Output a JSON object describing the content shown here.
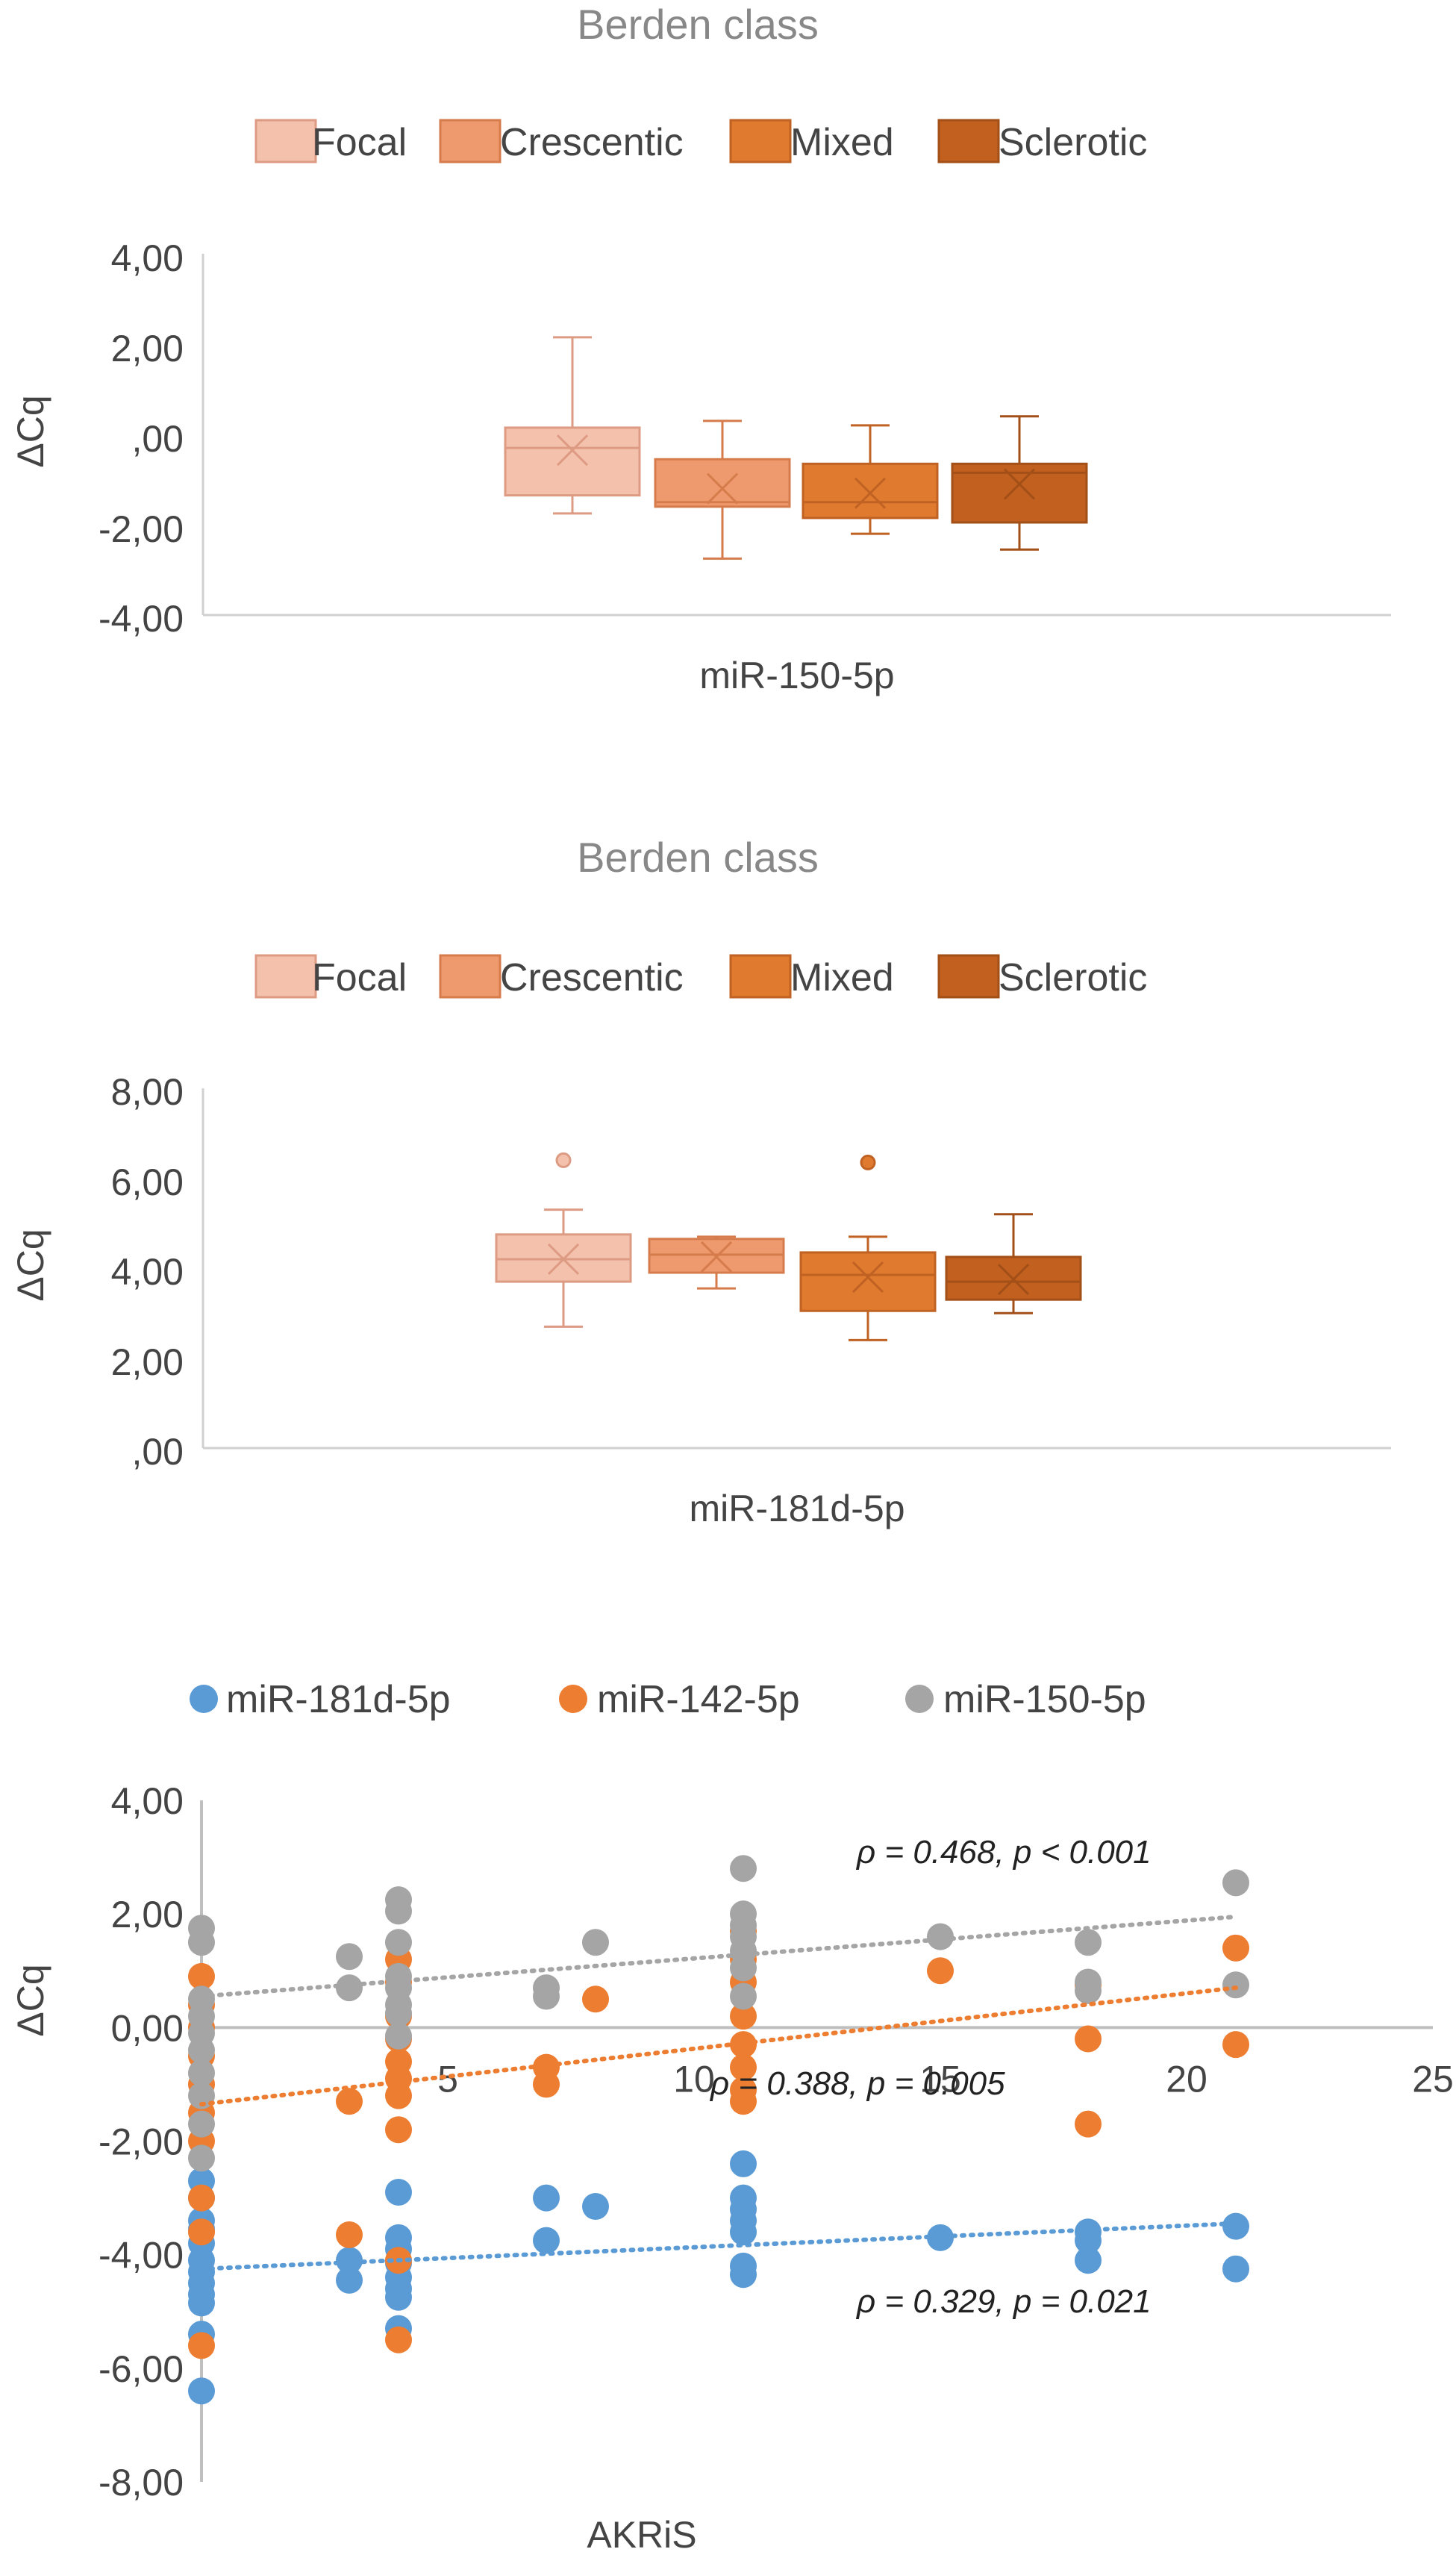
{
  "chart_data": [
    {
      "type": "box",
      "title": "Berden class",
      "xlabel": "miR-150-5p",
      "ylabel": "ΔCq",
      "ylim": [
        -4,
        4
      ],
      "yticks": [
        "4,00",
        "2,00",
        ",00",
        "-2,00",
        "-4,00"
      ],
      "ytick_values": [
        4,
        2,
        0,
        -2,
        -4
      ],
      "legend": [
        "Focal",
        "Crescentic",
        "Mixed",
        "Sclerotic"
      ],
      "colors": {
        "fill": [
          "#f4c1ac",
          "#ef9a6e",
          "#e07a2e",
          "#c2601f"
        ],
        "stroke": [
          "#dc9b82",
          "#d67c4c",
          "#bf6223",
          "#a34f18"
        ]
      },
      "boxes": [
        {
          "name": "Focal",
          "min": -1.75,
          "q1": -1.35,
          "median": -0.3,
          "q3": 0.15,
          "max": 2.15,
          "mean": -0.35,
          "outliers": []
        },
        {
          "name": "Crescentic",
          "min": -2.75,
          "q1": -1.6,
          "median": -1.5,
          "q3": -0.55,
          "max": 0.3,
          "mean": -1.2,
          "outliers": []
        },
        {
          "name": "Mixed",
          "min": -2.2,
          "q1": -1.85,
          "median": -1.5,
          "q3": -0.65,
          "max": 0.2,
          "mean": -1.3,
          "outliers": []
        },
        {
          "name": "Sclerotic",
          "min": -2.55,
          "q1": -1.95,
          "median": -0.85,
          "q3": -0.65,
          "max": 0.4,
          "mean": -1.1,
          "outliers": []
        }
      ]
    },
    {
      "type": "box",
      "title": "Berden class",
      "xlabel": "miR-181d-5p",
      "ylabel": "ΔCq",
      "ylim": [
        0,
        8
      ],
      "yticks": [
        "8,00",
        "6,00",
        "4,00",
        "2,00",
        ",00"
      ],
      "ytick_values": [
        8,
        6,
        4,
        2,
        0
      ],
      "legend": [
        "Focal",
        "Crescentic",
        "Mixed",
        "Sclerotic"
      ],
      "colors": {
        "fill": [
          "#f4c1ac",
          "#ef9a6e",
          "#e07a2e",
          "#c2601f"
        ],
        "stroke": [
          "#dc9b82",
          "#d67c4c",
          "#bf6223",
          "#a34f18"
        ]
      },
      "boxes": [
        {
          "name": "Focal",
          "min": 2.7,
          "q1": 3.7,
          "median": 4.2,
          "q3": 4.75,
          "max": 5.3,
          "mean": 4.2,
          "outliers": [
            6.4
          ]
        },
        {
          "name": "Crescentic",
          "min": 3.55,
          "q1": 3.9,
          "median": 4.3,
          "q3": 4.65,
          "max": 4.7,
          "mean": 4.25,
          "outliers": []
        },
        {
          "name": "Mixed",
          "min": 2.4,
          "q1": 3.05,
          "median": 3.85,
          "q3": 4.35,
          "max": 4.7,
          "mean": 3.8,
          "outliers": [
            6.35
          ]
        },
        {
          "name": "Sclerotic",
          "min": 3.0,
          "q1": 3.3,
          "median": 3.7,
          "q3": 4.25,
          "max": 5.2,
          "mean": 3.75,
          "outliers": []
        }
      ]
    },
    {
      "type": "scatter",
      "xlabel": "AKRiS",
      "ylabel": "ΔCq",
      "xlim": [
        0,
        25
      ],
      "ylim": [
        -8,
        4
      ],
      "xticks": [
        "0",
        "5",
        "10",
        "15",
        "20",
        "25"
      ],
      "xtick_values": [
        0,
        5,
        10,
        15,
        20,
        25
      ],
      "yticks": [
        "4,00",
        "2,00",
        "0,00",
        "-2,00",
        "-4,00",
        "-6,00",
        "-8,00"
      ],
      "ytick_values": [
        4,
        2,
        0,
        -2,
        -4,
        -6,
        -8
      ],
      "series": [
        {
          "name": "miR-181d-5p",
          "color": "#5b9bd5",
          "trend": [
            [
              0,
              -4.25
            ],
            [
              21,
              -3.45
            ]
          ],
          "annotation": "ρ = 0.329, p = 0.021",
          "points": [
            [
              0,
              -2.7
            ],
            [
              0,
              -3.0
            ],
            [
              0,
              -3.4
            ],
            [
              0,
              -3.8
            ],
            [
              0,
              -4.1
            ],
            [
              0,
              -4.3
            ],
            [
              0,
              -4.5
            ],
            [
              0,
              -4.7
            ],
            [
              0,
              -5.4
            ],
            [
              0,
              -6.4
            ],
            [
              0,
              -3.55
            ],
            [
              0,
              -4.85
            ],
            [
              3,
              -4.1
            ],
            [
              3,
              -4.45
            ],
            [
              4,
              -2.9
            ],
            [
              4,
              -3.7
            ],
            [
              4,
              -3.9
            ],
            [
              4,
              -4.15
            ],
            [
              4,
              -4.4
            ],
            [
              4,
              -4.6
            ],
            [
              4,
              -4.75
            ],
            [
              4,
              -5.3
            ],
            [
              7,
              -3.0
            ],
            [
              7,
              -3.75
            ],
            [
              8,
              -3.15
            ],
            [
              11,
              -2.4
            ],
            [
              11,
              -3.0
            ],
            [
              11,
              -3.2
            ],
            [
              11,
              -3.4
            ],
            [
              11,
              -3.6
            ],
            [
              11,
              -4.2
            ],
            [
              11,
              -4.35
            ],
            [
              15,
              -3.7
            ],
            [
              18,
              -3.6
            ],
            [
              18,
              -3.75
            ],
            [
              18,
              -4.1
            ],
            [
              21,
              -3.5
            ],
            [
              21,
              -4.25
            ]
          ]
        },
        {
          "name": "miR-142-5p",
          "color": "#ed7d31",
          "trend": [
            [
              0,
              -1.35
            ],
            [
              21,
              0.7
            ]
          ],
          "annotation": "ρ = 0.388, p = 0.005",
          "points": [
            [
              0,
              0.9
            ],
            [
              0,
              0.4
            ],
            [
              0,
              0.0
            ],
            [
              0,
              -0.5
            ],
            [
              0,
              -1.0
            ],
            [
              0,
              -1.5
            ],
            [
              0,
              -2.0
            ],
            [
              0,
              -3.0
            ],
            [
              0,
              -3.6
            ],
            [
              0,
              -5.6
            ],
            [
              3,
              -1.3
            ],
            [
              3,
              -3.65
            ],
            [
              4,
              1.2
            ],
            [
              4,
              0.8
            ],
            [
              4,
              0.2
            ],
            [
              4,
              -0.2
            ],
            [
              4,
              -0.6
            ],
            [
              4,
              -0.9
            ],
            [
              4,
              -1.2
            ],
            [
              4,
              -1.8
            ],
            [
              4,
              -4.1
            ],
            [
              4,
              -5.5
            ],
            [
              7,
              -0.7
            ],
            [
              7,
              -1.0
            ],
            [
              8,
              0.5
            ],
            [
              11,
              1.7
            ],
            [
              11,
              1.2
            ],
            [
              11,
              0.8
            ],
            [
              11,
              0.2
            ],
            [
              11,
              -0.3
            ],
            [
              11,
              -0.7
            ],
            [
              11,
              -1.1
            ],
            [
              11,
              -1.3
            ],
            [
              15,
              1.0
            ],
            [
              18,
              0.75
            ],
            [
              18,
              -0.2
            ],
            [
              18,
              -1.7
            ],
            [
              21,
              1.4
            ],
            [
              21,
              -0.3
            ]
          ]
        },
        {
          "name": "miR-150-5p",
          "color": "#a5a5a5",
          "trend": [
            [
              0,
              0.55
            ],
            [
              21,
              1.95
            ]
          ],
          "annotation": "ρ = 0.468, p < 0.001",
          "points": [
            [
              0,
              1.75
            ],
            [
              0,
              1.5
            ],
            [
              0,
              0.5
            ],
            [
              0,
              0.2
            ],
            [
              0,
              -0.1
            ],
            [
              0,
              -0.4
            ],
            [
              0,
              -0.8
            ],
            [
              0,
              -1.2
            ],
            [
              0,
              -1.7
            ],
            [
              0,
              -2.3
            ],
            [
              3,
              1.25
            ],
            [
              3,
              0.7
            ],
            [
              4,
              2.25
            ],
            [
              4,
              2.05
            ],
            [
              4,
              1.5
            ],
            [
              4,
              0.9
            ],
            [
              4,
              0.7
            ],
            [
              4,
              0.4
            ],
            [
              4,
              0.25
            ],
            [
              4,
              -0.15
            ],
            [
              7,
              0.7
            ],
            [
              7,
              0.55
            ],
            [
              8,
              1.5
            ],
            [
              11,
              2.8
            ],
            [
              11,
              2.0
            ],
            [
              11,
              1.8
            ],
            [
              11,
              1.6
            ],
            [
              11,
              1.35
            ],
            [
              11,
              1.05
            ],
            [
              11,
              0.55
            ],
            [
              15,
              1.6
            ],
            [
              18,
              1.5
            ],
            [
              18,
              0.8
            ],
            [
              18,
              0.65
            ],
            [
              21,
              2.55
            ],
            [
              21,
              0.75
            ]
          ]
        }
      ]
    }
  ]
}
